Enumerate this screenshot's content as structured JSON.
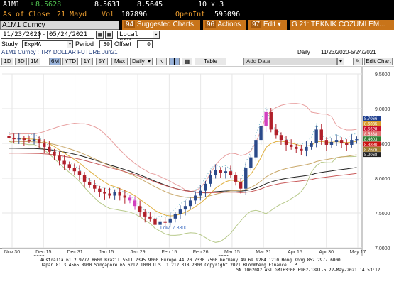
{
  "quote": {
    "ticker": "A1M1",
    "last_prefix": "s",
    "last": "8.5628",
    "bid": "8.5631",
    "ask": "8.5645",
    "size": "10 x 3",
    "close_label": "As of Close",
    "close_date": "21 Mayd",
    "vol_label": "Vol",
    "vol": "107896",
    "oi_label": "OpenInt",
    "oi": "595096"
  },
  "toolbar": {
    "security": "A1M1 Curncy",
    "suggested_num": "94",
    "suggested_label": "Suggested Charts",
    "actions_num": "96",
    "actions_label": "Actions",
    "edit_num": "97",
    "edit_label": "Edit",
    "title_label": "G 21: TEKNIK COZUMLEM..."
  },
  "controls": {
    "start_date": "11/23/2020",
    "end_date": "05/24/2021",
    "currency": "Local CCY",
    "study_label": "Study",
    "study_value": "ExpMA",
    "period_label": "Period",
    "period_value": "50",
    "offset_label": "Offset",
    "offset_value": "0"
  },
  "info": {
    "description": "A1M1 Curncy : TRY DOLLAR FUTURE Jun21",
    "frequency": "Daily",
    "range": "11/23/2020-5/24/2021"
  },
  "periods": {
    "items": [
      "1D",
      "3D",
      "1M",
      "6M",
      "YTD",
      "1Y",
      "5Y",
      "Max"
    ],
    "selected": "6M",
    "freq": "Daily",
    "table": "Table",
    "add_data": "Add Data",
    "edit_chart": "Edit Chart"
  },
  "chart_data": {
    "type": "candlestick",
    "x_ticks": [
      "Nov 30",
      "Dec 15",
      "Dec 31",
      "Jan 15",
      "Jan 29",
      "Feb 15",
      "Feb 26",
      "Mar 15",
      "Mar 31",
      "Apr 15",
      "Apr 30",
      "May 17"
    ],
    "x_year_labels": [
      "2020",
      "2021"
    ],
    "y_ticks": [
      "9.5000",
      "9.0000",
      "8.5000",
      "8.0000",
      "7.5000",
      "7.0000"
    ],
    "ylim": [
      7.0,
      9.5
    ],
    "low_annotation": "Low: 7.3300",
    "closes": [
      8.58,
      8.56,
      8.57,
      8.55,
      8.54,
      8.56,
      8.5,
      8.45,
      8.38,
      8.32,
      8.25,
      8.2,
      8.15,
      8.1,
      8.05,
      7.95,
      7.9,
      7.85,
      7.8,
      7.78,
      7.75,
      7.8,
      7.75,
      7.72,
      7.68,
      7.6,
      7.52,
      7.45,
      7.42,
      7.33,
      7.38,
      7.36,
      7.42,
      7.48,
      7.55,
      7.6,
      7.68,
      7.75,
      7.82,
      7.92,
      8.05,
      8.12,
      8.08,
      8.1,
      8.05,
      7.95,
      7.85,
      8.15,
      8.3,
      8.55,
      8.75,
      8.95,
      8.7,
      8.62,
      8.55,
      8.48,
      8.45,
      8.42,
      8.4,
      8.45,
      8.5,
      8.7,
      8.55,
      8.48,
      8.52,
      8.55,
      8.5,
      8.48,
      8.55,
      8.56
    ],
    "price_labels": [
      {
        "text": "8.7066",
        "color": "#1f3f8f"
      },
      {
        "text": "8.6035",
        "color": "#d89a2a"
      },
      {
        "text": "8.5628",
        "color": "#c8102e"
      },
      {
        "text": "8.5338",
        "color": "#e07070"
      },
      {
        "text": "8.4603",
        "color": "#2e7d32"
      },
      {
        "text": "8.3890",
        "color": "#cc1111"
      },
      {
        "text": "8.2676",
        "color": "#9a7a30"
      },
      {
        "text": "8.2068",
        "color": "#222222"
      }
    ]
  },
  "footer": {
    "line1": "Australia 61 2 9777 8600  Brazil 5511 2395 9000  Europe 44 20 7330 7500  Germany 49 69 9204 1210  Hong Kong 852 2977 6000",
    "line2": "Japan 81 3 4565 8900        Singapore 65 6212 1000        U.S. 1 212 318 2000        Copyright 2021 Bloomberg Finance L.P.",
    "line3": "SN 1002082 AST  GMT+3:00 H902-1881-5 22-May-2021 14:53:12"
  }
}
